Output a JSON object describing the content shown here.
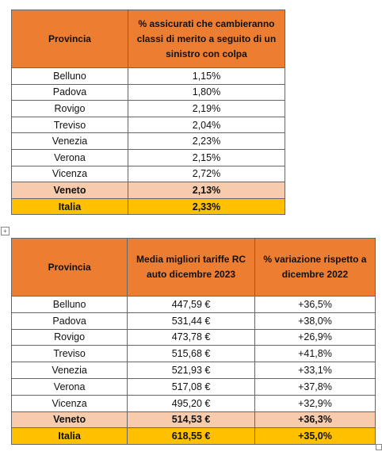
{
  "tables": [
    {
      "header": [
        "Provincia",
        "% assicurati che cambieranno classi di merito a seguito di un sinistro con colpa"
      ],
      "rows": [
        [
          "Belluno",
          "1,15%"
        ],
        [
          "Padova",
          "1,80%"
        ],
        [
          "Rovigo",
          "2,19%"
        ],
        [
          "Treviso",
          "2,04%"
        ],
        [
          "Venezia",
          "2,23%"
        ],
        [
          "Verona",
          "2,15%"
        ],
        [
          "Vicenza",
          "2,72%"
        ],
        [
          "Veneto",
          "2,13%"
        ],
        [
          "Italia",
          "2,33%"
        ]
      ]
    },
    {
      "header": [
        "Provincia",
        "Media migliori tariffe RC auto dicembre 2023",
        "% variazione rispetto a dicembre 2022"
      ],
      "rows": [
        [
          "Belluno",
          "447,59 €",
          "+36,5%"
        ],
        [
          "Padova",
          "531,44 €",
          "+38,0%"
        ],
        [
          "Rovigo",
          "473,78 €",
          "+26,9%"
        ],
        [
          "Treviso",
          "515,68 €",
          "+41,8%"
        ],
        [
          "Venezia",
          "521,93 €",
          "+33,1%"
        ],
        [
          "Verona",
          "517,08 €",
          "+37,8%"
        ],
        [
          "Vicenza",
          "495,20 €",
          "+32,9%"
        ],
        [
          "Veneto",
          "514,53 €",
          "+36,3%"
        ],
        [
          "Italia",
          "618,55 €",
          "+35,0%"
        ]
      ]
    }
  ]
}
